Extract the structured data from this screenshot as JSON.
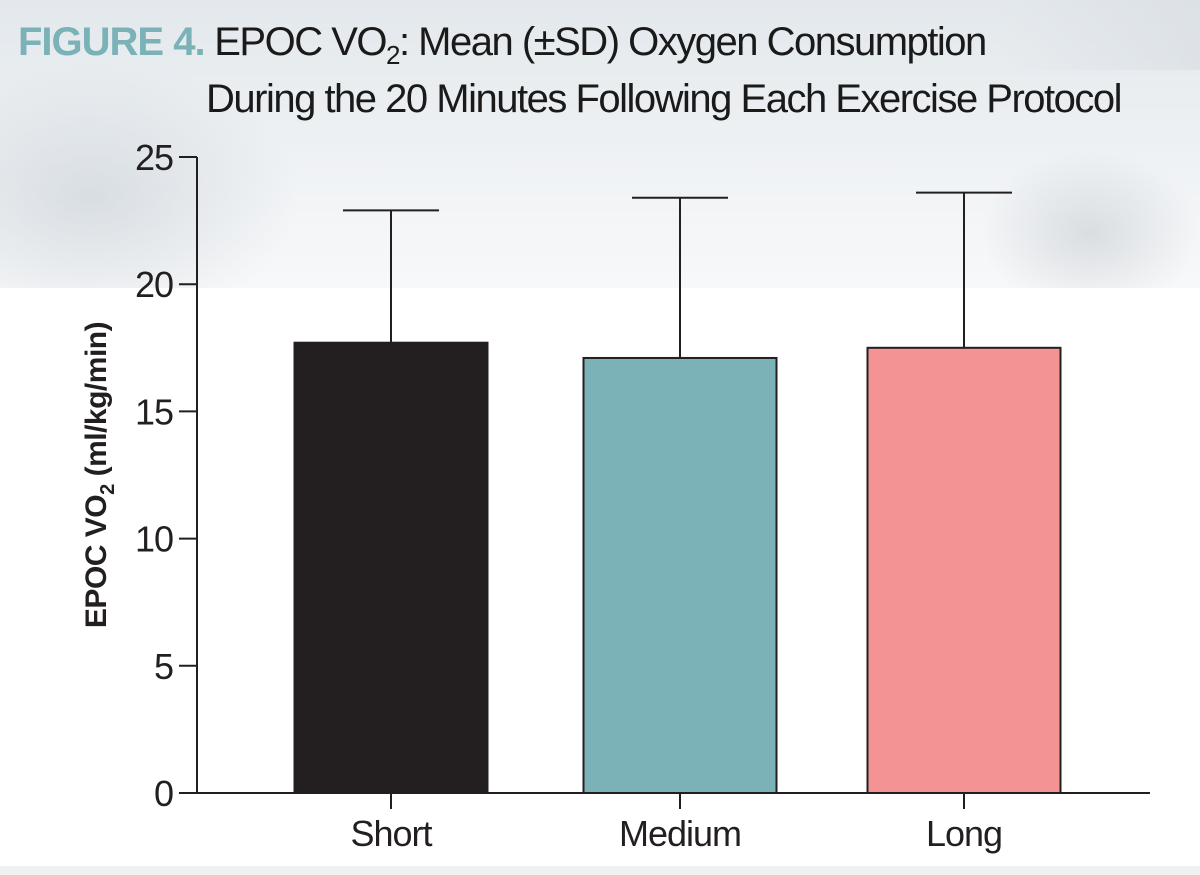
{
  "title": {
    "figure_label": "FIGURE 4.",
    "line1_pre": "EPOC VO",
    "line1_sub": "2",
    "line1_post": ": Mean (±SD) Oxygen Consumption",
    "line2": "During the 20 Minutes Following Each Exercise Protocol"
  },
  "chart_data": {
    "type": "bar",
    "title": "EPOC VO2: Mean (±SD) Oxygen Consumption During the 20 Minutes Following Each Exercise Protocol",
    "categories": [
      "Short",
      "Medium",
      "Long"
    ],
    "values": [
      17.7,
      17.1,
      17.5
    ],
    "error_sd": [
      5.2,
      6.3,
      6.1
    ],
    "colors": [
      "#231f20",
      "#7ab2b8",
      "#f49393"
    ],
    "ylabel_pre": "EPOC VO",
    "ylabel_sub": "2",
    "ylabel_post": " (ml/kg/min)",
    "ylim": [
      0,
      25
    ],
    "yticks": [
      0,
      5,
      10,
      15,
      20,
      25
    ],
    "grid": false,
    "legend": "none"
  }
}
